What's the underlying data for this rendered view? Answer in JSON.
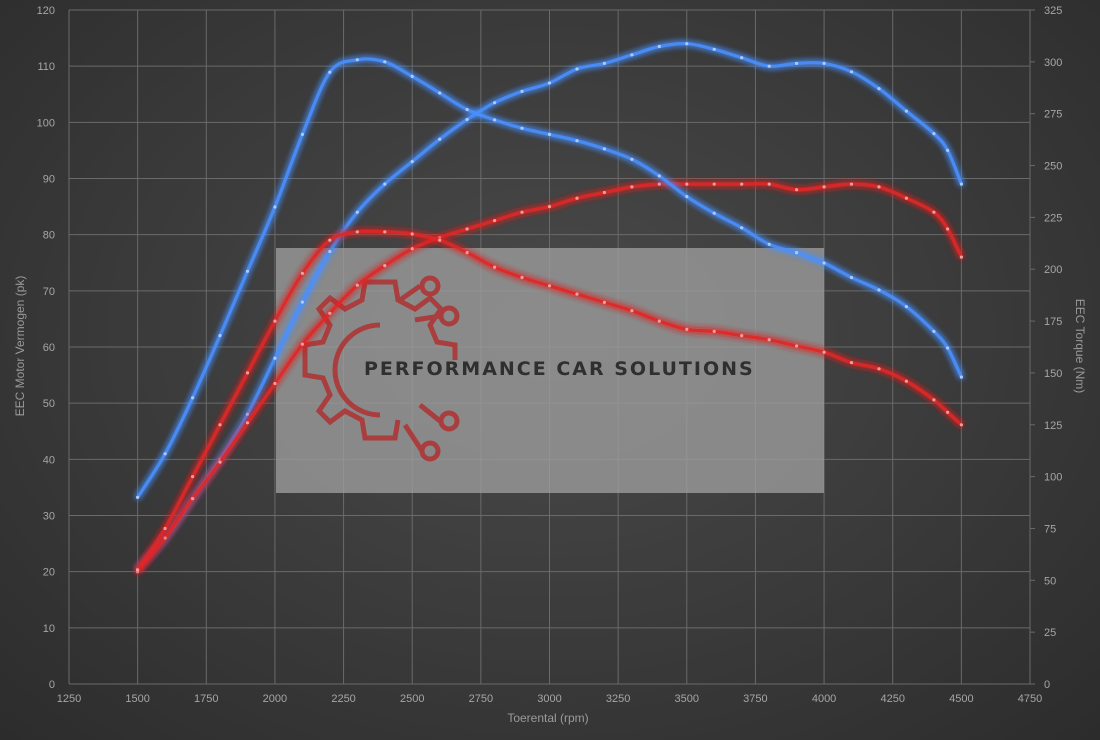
{
  "chart_data": {
    "type": "line",
    "xlabel": "Toerental (rpm)",
    "ylabel_left": "EEC Motor Vermogen (pk)",
    "ylabel_right": "EEC Torque (Nm)",
    "xlim": [
      1250,
      4750
    ],
    "ylim_left": [
      0,
      120
    ],
    "ylim_right": [
      0,
      325
    ],
    "x_ticks": [
      1250,
      1500,
      1750,
      2000,
      2250,
      2500,
      2750,
      3000,
      3250,
      3500,
      3750,
      4000,
      4250,
      4500,
      4750
    ],
    "y_left_ticks": [
      0,
      10,
      20,
      30,
      40,
      50,
      60,
      70,
      80,
      90,
      100,
      110,
      120
    ],
    "y_right_ticks": [
      0,
      25,
      50,
      75,
      100,
      125,
      150,
      175,
      200,
      225,
      250,
      275,
      300,
      325
    ],
    "grid": true,
    "series": [
      {
        "color": "#4a90ff",
        "axis": "left",
        "x": [
          1500,
          1600,
          1700,
          1800,
          1900,
          2000,
          2100,
          2200,
          2300,
          2400,
          2500,
          2600,
          2700,
          2800,
          2900,
          3000,
          3100,
          3200,
          3300,
          3400,
          3500,
          3600,
          3700,
          3800,
          3900,
          4000,
          4100,
          4200,
          4300,
          4400,
          4450,
          4500
        ],
        "y": [
          20.5,
          26,
          33,
          40,
          48,
          58,
          68,
          77,
          84,
          89,
          93,
          97,
          100.5,
          103.5,
          105.5,
          107,
          109.5,
          110.5,
          112,
          113.5,
          114,
          113,
          111.5,
          110,
          110.5,
          110.5,
          109,
          106,
          102,
          98,
          95,
          89
        ]
      },
      {
        "color": "#e02828",
        "axis": "left",
        "x": [
          1500,
          1600,
          1700,
          1800,
          1900,
          2000,
          2100,
          2200,
          2300,
          2400,
          2500,
          2600,
          2700,
          2800,
          2900,
          3000,
          3100,
          3200,
          3300,
          3400,
          3500,
          3600,
          3700,
          3800,
          3900,
          4000,
          4100,
          4200,
          4300,
          4400,
          4450,
          4500
        ],
        "y": [
          20,
          26,
          33,
          39.5,
          46.5,
          53.5,
          60.5,
          66,
          71,
          74.5,
          77.5,
          79.5,
          81,
          82.5,
          84,
          85,
          86.5,
          87.5,
          88.5,
          89,
          89,
          89,
          89,
          89,
          88,
          88.5,
          89,
          88.5,
          86.5,
          84,
          81,
          76
        ]
      },
      {
        "color": "#4a90ff",
        "axis": "right",
        "x": [
          1500,
          1600,
          1700,
          1800,
          1900,
          2000,
          2100,
          2200,
          2300,
          2400,
          2500,
          2600,
          2700,
          2800,
          2900,
          3000,
          3100,
          3200,
          3300,
          3400,
          3500,
          3600,
          3700,
          3800,
          3900,
          4000,
          4100,
          4200,
          4300,
          4400,
          4450,
          4500
        ],
        "y": [
          90,
          111,
          138,
          168,
          199,
          230,
          265,
          295,
          301,
          300,
          293,
          285,
          277,
          272,
          268,
          265,
          262,
          258,
          253,
          245,
          235,
          227,
          220,
          212,
          208,
          203,
          196,
          190,
          182,
          170,
          162,
          148
        ]
      },
      {
        "color": "#e02828",
        "axis": "right",
        "x": [
          1500,
          1600,
          1700,
          1800,
          1900,
          2000,
          2100,
          2200,
          2300,
          2400,
          2500,
          2600,
          2700,
          2800,
          2900,
          3000,
          3100,
          3200,
          3300,
          3400,
          3500,
          3600,
          3700,
          3800,
          3900,
          4000,
          4100,
          4200,
          4300,
          4400,
          4450,
          4500
        ],
        "y": [
          55,
          75,
          100,
          125,
          150,
          175,
          198,
          214,
          218,
          218,
          217,
          214,
          208,
          201,
          196,
          192,
          188,
          184,
          180,
          175,
          171,
          170,
          168,
          166,
          163,
          160,
          155,
          152,
          146,
          137,
          131,
          125
        ]
      }
    ]
  },
  "watermark": {
    "text": "PERFORMANCE CAR SOLUTIONS"
  }
}
